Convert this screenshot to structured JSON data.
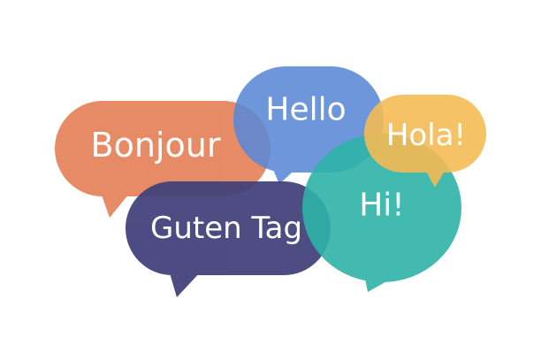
{
  "bubbles": [
    {
      "text": "Bonjour",
      "color": "#e5825a"
    },
    {
      "text": "Hello",
      "color": "#5a89d6"
    },
    {
      "text": "Hola!",
      "color": "#f4bb55"
    },
    {
      "text": "Guten Tag",
      "color": "#3f3f7a"
    },
    {
      "text": "Hi!",
      "color": "#2eb3a7"
    }
  ]
}
